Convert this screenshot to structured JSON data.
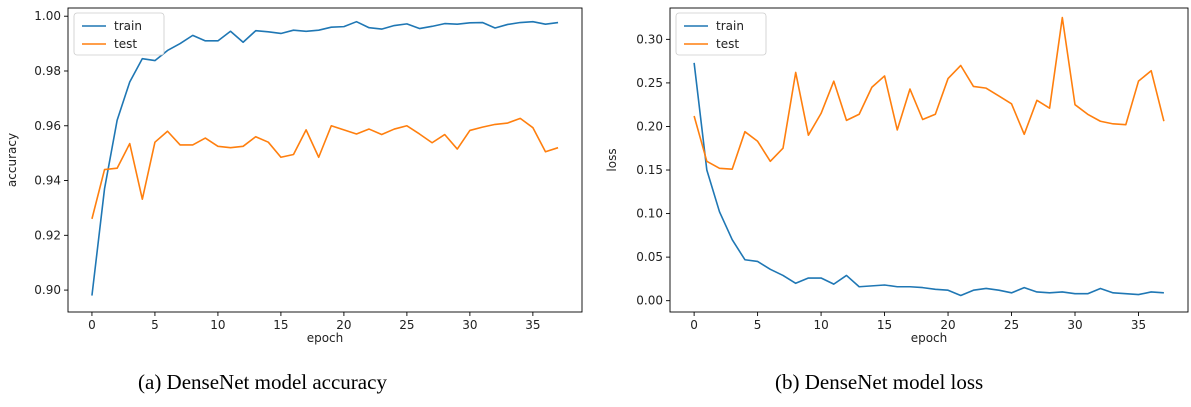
{
  "chart_data": [
    {
      "type": "line",
      "xlabel": "epoch",
      "ylabel": "accuracy",
      "xlim": [
        -1.9,
        38.9
      ],
      "ylim": [
        0.892,
        1.003
      ],
      "xticks": [
        0,
        5,
        10,
        15,
        20,
        25,
        30,
        35
      ],
      "yticks": [
        0.9,
        0.92,
        0.94,
        0.96,
        0.98,
        1.0
      ],
      "ytick_labels": [
        "0.90",
        "0.92",
        "0.94",
        "0.96",
        "0.98",
        "1.00"
      ],
      "legend_position": "upper-left",
      "x": [
        0,
        1,
        2,
        3,
        4,
        5,
        6,
        7,
        8,
        9,
        10,
        11,
        12,
        13,
        14,
        15,
        16,
        17,
        18,
        19,
        20,
        21,
        22,
        23,
        24,
        25,
        26,
        27,
        28,
        29,
        30,
        31,
        32,
        33,
        34,
        35,
        36,
        37
      ],
      "series": [
        {
          "name": "train",
          "color": "#1f77b4",
          "values": [
            0.898,
            0.937,
            0.962,
            0.976,
            0.9845,
            0.9838,
            0.9875,
            0.99,
            0.993,
            0.991,
            0.991,
            0.9945,
            0.9905,
            0.9947,
            0.9943,
            0.9937,
            0.9949,
            0.9945,
            0.9949,
            0.996,
            0.9962,
            0.998,
            0.9958,
            0.9953,
            0.9966,
            0.9972,
            0.9955,
            0.9963,
            0.9973,
            0.9971,
            0.9976,
            0.9977,
            0.9957,
            0.997,
            0.9977,
            0.998,
            0.9971,
            0.9977
          ]
        },
        {
          "name": "test",
          "color": "#ff7f0e",
          "values": [
            0.926,
            0.944,
            0.9445,
            0.9535,
            0.9332,
            0.954,
            0.958,
            0.953,
            0.953,
            0.9555,
            0.9525,
            0.952,
            0.9525,
            0.956,
            0.954,
            0.9485,
            0.9495,
            0.9585,
            0.9485,
            0.96,
            0.9585,
            0.957,
            0.9588,
            0.9568,
            0.9588,
            0.96,
            0.957,
            0.9538,
            0.9568,
            0.9515,
            0.9583,
            0.9595,
            0.9605,
            0.961,
            0.9627,
            0.9593,
            0.9505,
            0.952
          ]
        }
      ]
    },
    {
      "type": "line",
      "xlabel": "epoch",
      "ylabel": "loss",
      "xlim": [
        -1.9,
        38.9
      ],
      "ylim": [
        -0.013,
        0.336
      ],
      "xticks": [
        0,
        5,
        10,
        15,
        20,
        25,
        30,
        35
      ],
      "yticks": [
        0.0,
        0.05,
        0.1,
        0.15,
        0.2,
        0.25,
        0.3
      ],
      "ytick_labels": [
        "0.00",
        "0.05",
        "0.10",
        "0.15",
        "0.20",
        "0.25",
        "0.30"
      ],
      "legend_position": "upper-left",
      "x": [
        0,
        1,
        2,
        3,
        4,
        5,
        6,
        7,
        8,
        9,
        10,
        11,
        12,
        13,
        14,
        15,
        16,
        17,
        18,
        19,
        20,
        21,
        22,
        23,
        24,
        25,
        26,
        27,
        28,
        29,
        30,
        31,
        32,
        33,
        34,
        35,
        36,
        37
      ],
      "series": [
        {
          "name": "train",
          "color": "#1f77b4",
          "values": [
            0.273,
            0.15,
            0.102,
            0.07,
            0.047,
            0.045,
            0.036,
            0.029,
            0.02,
            0.026,
            0.026,
            0.019,
            0.029,
            0.016,
            0.017,
            0.018,
            0.016,
            0.016,
            0.015,
            0.013,
            0.012,
            0.006,
            0.012,
            0.014,
            0.012,
            0.009,
            0.015,
            0.01,
            0.009,
            0.01,
            0.008,
            0.008,
            0.014,
            0.009,
            0.008,
            0.007,
            0.01,
            0.009
          ]
        },
        {
          "name": "test",
          "color": "#ff7f0e",
          "values": [
            0.212,
            0.16,
            0.152,
            0.151,
            0.194,
            0.183,
            0.16,
            0.175,
            0.262,
            0.19,
            0.215,
            0.252,
            0.207,
            0.214,
            0.245,
            0.258,
            0.196,
            0.243,
            0.208,
            0.214,
            0.255,
            0.27,
            0.246,
            0.244,
            0.235,
            0.226,
            0.191,
            0.23,
            0.221,
            0.325,
            0.225,
            0.214,
            0.206,
            0.203,
            0.202,
            0.252,
            0.264,
            0.206
          ]
        }
      ]
    }
  ],
  "captions": {
    "a": "(a) DenseNet model accuracy",
    "b": "(b) DenseNet model loss"
  }
}
